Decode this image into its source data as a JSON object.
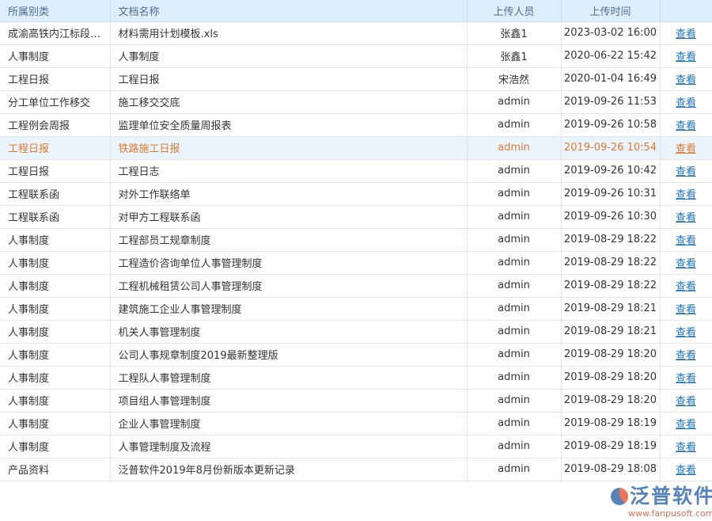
{
  "headers": [
    "所属别类",
    "文档名称",
    "上传人员",
    "上传时间",
    ""
  ],
  "action_label": "查看",
  "rows": [
    [
      "成渝高铁内江标段…",
      "材料需用计划模板.xls",
      "张鑫1",
      "2023-03-02 16:00"
    ],
    [
      "人事制度",
      "人事制度",
      "张鑫1",
      "2020-06-22 15:42"
    ],
    [
      "工程日报",
      "工程日报",
      "宋浩然",
      "2020-01-04 16:49"
    ],
    [
      "分工单位工作移交",
      "施工移交交底",
      "admin",
      "2019-09-26 11:53"
    ],
    [
      "工程例会周报",
      "监理单位安全质量周报表",
      "admin",
      "2019-09-26 10:58"
    ],
    [
      "工程日报",
      "铁路施工日报",
      "admin",
      "2019-09-26 10:54"
    ],
    [
      "工程日报",
      "工程日志",
      "admin",
      "2019-09-26 10:42"
    ],
    [
      "工程联系函",
      "对外工作联络单",
      "admin",
      "2019-09-26 10:31"
    ],
    [
      "工程联系函",
      "对甲方工程联系函",
      "admin",
      "2019-09-26 10:30"
    ],
    [
      "人事制度",
      "工程部员工规章制度",
      "admin",
      "2019-08-29 18:22"
    ],
    [
      "人事制度",
      "工程造价咨询单位人事管理制度",
      "admin",
      "2019-08-29 18:22"
    ],
    [
      "人事制度",
      "工程机械租赁公司人事管理制度",
      "admin",
      "2019-08-29 18:22"
    ],
    [
      "人事制度",
      "建筑施工企业人事管理制度",
      "admin",
      "2019-08-29 18:21"
    ],
    [
      "人事制度",
      "机关人事管理制度",
      "admin",
      "2019-08-29 18:21"
    ],
    [
      "人事制度",
      "公司人事规章制度2019最新整理版",
      "admin",
      "2019-08-29 18:20"
    ],
    [
      "人事制度",
      "工程队人事管理制度",
      "admin",
      "2019-08-29 18:20"
    ],
    [
      "人事制度",
      "项目组人事管理制度",
      "admin",
      "2019-08-29 18:20"
    ],
    [
      "人事制度",
      "企业人事管理制度",
      "admin",
      "2019-08-29 18:19"
    ],
    [
      "人事制度",
      "人事管理制度及流程",
      "admin",
      "2019-08-29 18:19"
    ],
    [
      "产品资料",
      "泛普软件2019年8月份新版本更新记录",
      "admin",
      "2019-08-29 18:08"
    ]
  ],
  "highlighted_row": 5,
  "watermark": {
    "text": "泛普软件",
    "url": "www.fanpusoft.com"
  }
}
